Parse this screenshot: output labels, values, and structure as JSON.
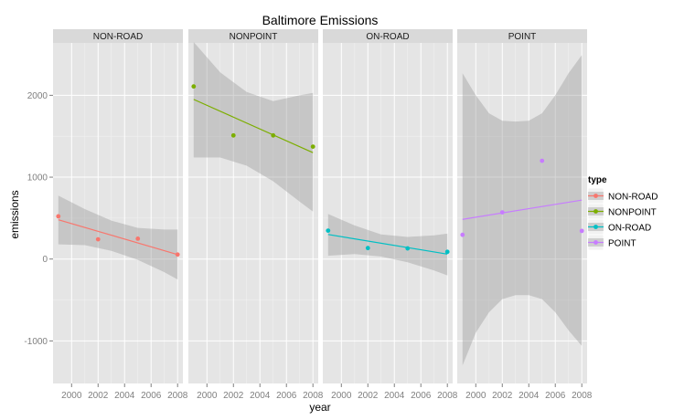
{
  "chart_data": {
    "type": "scatter",
    "title": "Baltimore Emissions",
    "xlabel": "year",
    "ylabel": "emissions",
    "xlim": [
      1998.6,
      2008.4
    ],
    "ylim": [
      -1520,
      2640
    ],
    "x_ticks": [
      2000,
      2002,
      2004,
      2006,
      2008
    ],
    "y_ticks": [
      -1000,
      0,
      1000,
      2000
    ],
    "grid": true,
    "legend": {
      "title": "type",
      "position": "right"
    },
    "panels": [
      {
        "name": "NON-ROAD",
        "color": "#F8766D",
        "points": [
          {
            "x": 1999,
            "y": 522
          },
          {
            "x": 2002,
            "y": 241
          },
          {
            "x": 2005,
            "y": 249
          },
          {
            "x": 2008,
            "y": 55
          }
        ],
        "fit": {
          "x": [
            1999,
            2008
          ],
          "y": [
            480,
            55
          ]
        },
        "band": {
          "x": [
            1999,
            2001,
            2003,
            2005,
            2007,
            2008
          ],
          "lower": [
            180,
            170,
            100,
            -10,
            -160,
            -250
          ],
          "upper": [
            775,
            610,
            470,
            380,
            360,
            360
          ]
        }
      },
      {
        "name": "NONPOINT",
        "color": "#7CAE00",
        "points": [
          {
            "x": 1999,
            "y": 2108
          },
          {
            "x": 2002,
            "y": 1510
          },
          {
            "x": 2005,
            "y": 1510
          },
          {
            "x": 2008,
            "y": 1373
          }
        ],
        "fit": {
          "x": [
            1999,
            2008
          ],
          "y": [
            1950,
            1300
          ]
        },
        "band": {
          "x": [
            1999,
            2001,
            2003,
            2005,
            2007,
            2008
          ],
          "lower": [
            1240,
            1240,
            1140,
            950,
            700,
            580
          ],
          "upper": [
            2650,
            2280,
            2040,
            1930,
            2000,
            2030
          ]
        }
      },
      {
        "name": "ON-ROAD",
        "color": "#00BFC4",
        "points": [
          {
            "x": 1999,
            "y": 347
          },
          {
            "x": 2002,
            "y": 134
          },
          {
            "x": 2005,
            "y": 130
          },
          {
            "x": 2008,
            "y": 88
          }
        ],
        "fit": {
          "x": [
            1999,
            2008
          ],
          "y": [
            300,
            60
          ]
        },
        "band": {
          "x": [
            1999,
            2001,
            2003,
            2005,
            2007,
            2008
          ],
          "lower": [
            40,
            60,
            30,
            -40,
            -140,
            -200
          ],
          "upper": [
            550,
            410,
            300,
            270,
            290,
            310
          ]
        }
      },
      {
        "name": "POINT",
        "color": "#C77CFF",
        "points": [
          {
            "x": 1999,
            "y": 296
          },
          {
            "x": 2002,
            "y": 570
          },
          {
            "x": 2005,
            "y": 1200
          },
          {
            "x": 2008,
            "y": 344
          }
        ],
        "fit": {
          "x": [
            1999,
            2008
          ],
          "y": [
            485,
            720
          ]
        },
        "band": {
          "x": [
            1999,
            2000,
            2001,
            2002,
            2003,
            2004,
            2005,
            2006,
            2007,
            2008
          ],
          "lower": [
            -1300,
            -900,
            -650,
            -490,
            -440,
            -440,
            -490,
            -650,
            -870,
            -1060
          ],
          "upper": [
            2270,
            2000,
            1780,
            1690,
            1680,
            1690,
            1780,
            2000,
            2270,
            2490
          ]
        }
      }
    ]
  }
}
